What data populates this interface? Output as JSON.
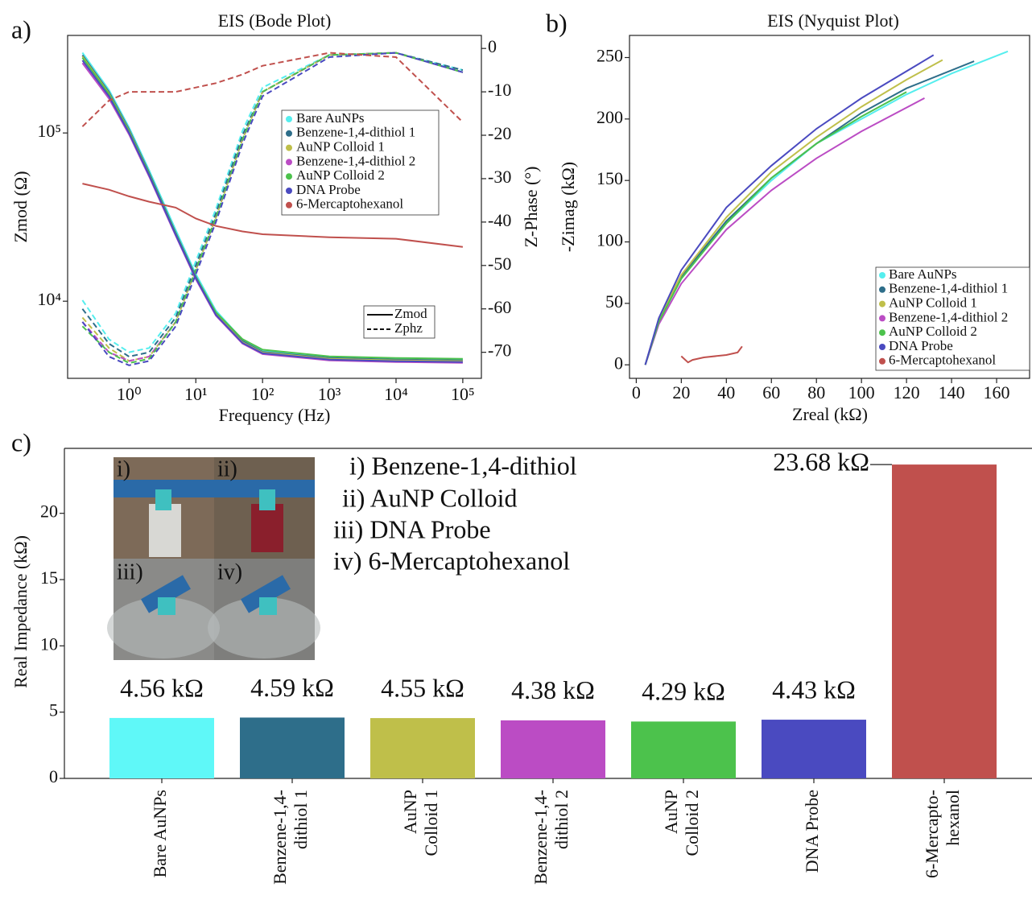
{
  "chart_data": [
    {
      "type": "bode",
      "panel": "a)",
      "title": "EIS (Bode Plot)",
      "x_label": "Frequency (Hz)",
      "y_label": "Zmod (Ω)",
      "y2_label": "Z-Phase (°)",
      "x": [
        0.2,
        0.5,
        1,
        2,
        5,
        10,
        20,
        50,
        100,
        1000,
        10000,
        100000
      ],
      "xscale": "log",
      "yscale": "log",
      "xlim": [
        0.12,
        190000
      ],
      "xticks": [
        {
          "value": 1,
          "label": "10⁰"
        },
        {
          "value": 10,
          "label": "10¹"
        },
        {
          "value": 100,
          "label": "10²"
        },
        {
          "value": 1000,
          "label": "10³"
        },
        {
          "value": 10000,
          "label": "10⁴"
        },
        {
          "value": 100000,
          "label": "10⁵"
        }
      ],
      "ylim": [
        3480,
        380000
      ],
      "yticks": [
        {
          "value": 10000,
          "label": "10⁴"
        },
        {
          "value": 100000,
          "label": "10⁵"
        }
      ],
      "y2lim": [
        -76,
        3
      ],
      "y2ticks": [
        0,
        -10,
        -20,
        -30,
        -40,
        -50,
        -60,
        -70
      ],
      "style_legend": [
        "Zmod",
        "Zphz"
      ],
      "series": [
        {
          "name": "Bare AuNPs",
          "color": "#55eeee",
          "zmod": [
            300000,
            180000,
            108000,
            60000,
            26500,
            14500,
            8800,
            5900,
            5100,
            4650,
            4550,
            4500
          ],
          "zphz": [
            -58,
            -67,
            -70,
            -69,
            -61,
            -49,
            -37,
            -19,
            -9,
            -1.5,
            -1,
            -5
          ]
        },
        {
          "name": "Benzene-1,4-dithiol 1",
          "color": "#2e6e8a",
          "zmod": [
            290000,
            175000,
            105000,
            58000,
            25500,
            14000,
            8500,
            5800,
            5000,
            4600,
            4500,
            4450
          ],
          "zphz": [
            -60,
            -68,
            -71,
            -70,
            -62,
            -50,
            -38,
            -20,
            -10,
            -1.5,
            -1,
            -5
          ]
        },
        {
          "name": "AuNP Colloid 1",
          "color": "#bfbf4a",
          "zmod": [
            285000,
            172000,
            103000,
            57000,
            25000,
            13800,
            8400,
            5700,
            4950,
            4550,
            4450,
            4400
          ],
          "zphz": [
            -62,
            -69,
            -72,
            -71,
            -63,
            -51,
            -39,
            -21,
            -10,
            -1.5,
            -1,
            -5.5
          ]
        },
        {
          "name": "Benzene-1,4-dithiol 2",
          "color": "#bb4cc4",
          "zmod": [
            260000,
            160000,
            98000,
            55000,
            24500,
            13500,
            8200,
            5600,
            4850,
            4450,
            4350,
            4300
          ],
          "zphz": [
            -63,
            -70,
            -72,
            -71,
            -63,
            -51,
            -39,
            -21,
            -10,
            -1.5,
            -1,
            -5.5
          ]
        },
        {
          "name": "AuNP Colloid 2",
          "color": "#4cc24c",
          "zmod": [
            280000,
            170000,
            102000,
            57000,
            25200,
            13900,
            8600,
            5950,
            5150,
            4700,
            4600,
            4550
          ],
          "zphz": [
            -64,
            -70,
            -72.5,
            -71.5,
            -63,
            -51,
            -39,
            -21,
            -10,
            -1.5,
            -1,
            -5.5
          ]
        },
        {
          "name": "DNA Probe",
          "color": "#4a4ac0",
          "zmod": [
            270000,
            165000,
            100000,
            56000,
            24800,
            13700,
            8300,
            5650,
            4900,
            4500,
            4400,
            4350
          ],
          "zphz": [
            -63,
            -71,
            -73,
            -72,
            -64,
            -52,
            -40,
            -22,
            -11,
            -2,
            -1,
            -5.5
          ]
        },
        {
          "name": "6-Mercaptohexanol",
          "color": "#c0504d",
          "zmod": [
            50000,
            46000,
            42000,
            39000,
            36000,
            31000,
            28000,
            26000,
            25000,
            24000,
            23500,
            21000
          ],
          "zphz": [
            -18,
            -12,
            -10,
            -10,
            -10,
            -9,
            -8,
            -6,
            -4,
            -1,
            -2,
            -17
          ]
        }
      ]
    },
    {
      "type": "line",
      "panel": "b)",
      "title": "EIS (Nyquist Plot)",
      "x_label": "Zreal (kΩ)",
      "y_label": "-Zimag (kΩ)",
      "xlim": [
        -3,
        175
      ],
      "xticks": [
        0,
        20,
        40,
        60,
        80,
        100,
        120,
        140,
        160
      ],
      "ylim": [
        -11,
        268
      ],
      "yticks": [
        0,
        50,
        100,
        150,
        200,
        250
      ],
      "legend": "lower right",
      "series": [
        {
          "name": "Bare AuNPs",
          "color": "#55eeee",
          "x": [
            4,
            10,
            20,
            40,
            60,
            80,
            100,
            120,
            140,
            165
          ],
          "values": [
            0,
            35,
            70,
            115,
            150,
            180,
            200,
            220,
            237,
            255
          ]
        },
        {
          "name": "Benzene-1,4-dithiol 1",
          "color": "#2e6e8a",
          "x": [
            4,
            10,
            20,
            40,
            60,
            80,
            100,
            120,
            150
          ],
          "values": [
            0,
            36,
            72,
            117,
            152,
            180,
            205,
            225,
            247
          ]
        },
        {
          "name": "AuNP Colloid 1",
          "color": "#bfbf4a",
          "x": [
            4,
            10,
            20,
            40,
            60,
            80,
            100,
            120,
            136
          ],
          "values": [
            0,
            37,
            73,
            120,
            157,
            185,
            210,
            232,
            248
          ]
        },
        {
          "name": "Benzene-1,4-dithiol 2",
          "color": "#bb4cc4",
          "x": [
            4,
            10,
            20,
            40,
            60,
            80,
            100,
            128
          ],
          "values": [
            0,
            33,
            66,
            110,
            142,
            168,
            190,
            217
          ]
        },
        {
          "name": "AuNP Colloid 2",
          "color": "#4cc24c",
          "x": [
            4,
            10,
            20,
            40,
            60,
            80,
            100,
            120
          ],
          "values": [
            0,
            35,
            70,
            115,
            152,
            180,
            202,
            222
          ]
        },
        {
          "name": "DNA Probe",
          "color": "#4a4ac0",
          "x": [
            4,
            10,
            20,
            40,
            60,
            80,
            100,
            132
          ],
          "values": [
            0,
            38,
            77,
            128,
            162,
            192,
            217,
            252
          ]
        },
        {
          "name": "6-Mercaptohexanol",
          "color": "#c0504d",
          "x": [
            20,
            23,
            25,
            30,
            40,
            45,
            47
          ],
          "values": [
            7,
            2,
            4,
            6,
            8,
            10,
            15
          ]
        }
      ]
    },
    {
      "type": "bar",
      "panel": "c)",
      "y_label": "Real Impedance (kΩ)",
      "categories": [
        [
          "Bare AuNPs"
        ],
        [
          "Benzene-1,4-",
          "dithiol 1"
        ],
        [
          "AuNP",
          "Colloid 1"
        ],
        [
          "Benzene-1,4-",
          "dithiol 2"
        ],
        [
          "AuNP",
          "Colloid 2"
        ],
        [
          "DNA Probe"
        ],
        [
          "6-Mercapto-",
          "hexanol"
        ]
      ],
      "values": [
        4.56,
        4.59,
        4.55,
        4.38,
        4.29,
        4.43,
        23.68
      ],
      "value_labels": [
        "4.56 kΩ",
        "4.59 kΩ",
        "4.55 kΩ",
        "4.38 kΩ",
        "4.29 kΩ",
        "4.43 kΩ",
        "23.68 kΩ"
      ],
      "colors": [
        "#5ff8f8",
        "#2e6e8a",
        "#bfbf4a",
        "#bb4cc4",
        "#4cc24c",
        "#4a4ac0",
        "#c0504d"
      ],
      "ylim": [
        0,
        24.9
      ],
      "yticks": [
        0,
        5,
        10,
        15,
        20
      ],
      "inset": {
        "photo_labels": [
          "i)",
          "ii)",
          "iii)",
          "iv)"
        ],
        "captions": [
          "i) Benzene-1,4-dithiol",
          "ii) AuNP Colloid",
          "iii) DNA Probe",
          "iv) 6-Mercaptohexanol"
        ]
      }
    }
  ]
}
